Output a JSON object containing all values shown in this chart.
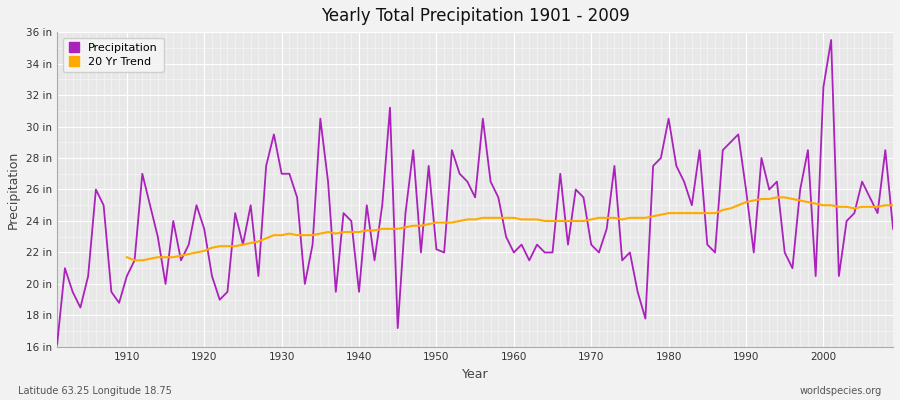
{
  "title": "Yearly Total Precipitation 1901 - 2009",
  "xlabel": "Year",
  "ylabel": "Precipitation",
  "x_label_bottom_left": "Latitude 63.25 Longitude 18.75",
  "x_label_bottom_right": "worldspecies.org",
  "fig_bg_color": "#f2f2f2",
  "plot_bg_color": "#e8e8e8",
  "grid_color": "#ffffff",
  "precip_color": "#aa22bb",
  "trend_color": "#ffaa00",
  "ylim": [
    16,
    36
  ],
  "xlim": [
    1901,
    2009
  ],
  "yticks": [
    16,
    18,
    20,
    22,
    24,
    26,
    28,
    30,
    32,
    34,
    36
  ],
  "ytick_labels": [
    "16 in",
    "18 in",
    "20 in",
    "22 in",
    "24 in",
    "26 in",
    "28 in",
    "30 in",
    "32 in",
    "34 in",
    "36 in"
  ],
  "xtick_vals": [
    1910,
    1920,
    1930,
    1940,
    1950,
    1960,
    1970,
    1980,
    1990,
    2000
  ],
  "years": [
    1901,
    1902,
    1903,
    1904,
    1905,
    1906,
    1907,
    1908,
    1909,
    1910,
    1911,
    1912,
    1913,
    1914,
    1915,
    1916,
    1917,
    1918,
    1919,
    1920,
    1921,
    1922,
    1923,
    1924,
    1925,
    1926,
    1927,
    1928,
    1929,
    1930,
    1931,
    1932,
    1933,
    1934,
    1935,
    1936,
    1937,
    1938,
    1939,
    1940,
    1941,
    1942,
    1943,
    1944,
    1945,
    1946,
    1947,
    1948,
    1949,
    1950,
    1951,
    1952,
    1953,
    1954,
    1955,
    1956,
    1957,
    1958,
    1959,
    1960,
    1961,
    1962,
    1963,
    1964,
    1965,
    1966,
    1967,
    1968,
    1969,
    1970,
    1971,
    1972,
    1973,
    1974,
    1975,
    1976,
    1977,
    1978,
    1979,
    1980,
    1981,
    1982,
    1983,
    1984,
    1985,
    1986,
    1987,
    1988,
    1989,
    1990,
    1991,
    1992,
    1993,
    1994,
    1995,
    1996,
    1997,
    1998,
    1999,
    2000,
    2001,
    2002,
    2003,
    2004,
    2005,
    2006,
    2007,
    2008,
    2009
  ],
  "precip": [
    16.2,
    21.0,
    19.5,
    18.5,
    20.5,
    26.0,
    25.0,
    19.5,
    18.8,
    20.5,
    21.5,
    27.0,
    25.0,
    23.0,
    20.0,
    24.0,
    21.5,
    22.5,
    25.0,
    23.5,
    20.5,
    19.0,
    19.5,
    24.5,
    22.5,
    25.0,
    20.5,
    27.5,
    29.5,
    27.0,
    27.0,
    25.5,
    20.0,
    22.5,
    30.5,
    26.5,
    19.5,
    24.5,
    24.0,
    19.5,
    25.0,
    21.5,
    25.0,
    31.2,
    17.2,
    24.5,
    28.5,
    22.0,
    27.5,
    22.2,
    22.0,
    28.5,
    27.0,
    26.5,
    25.5,
    30.5,
    26.5,
    25.5,
    23.0,
    22.0,
    22.5,
    21.5,
    22.5,
    22.0,
    22.0,
    27.0,
    22.5,
    26.0,
    25.5,
    22.5,
    22.0,
    23.5,
    27.5,
    21.5,
    22.0,
    19.5,
    17.8,
    27.5,
    28.0,
    30.5,
    27.5,
    26.5,
    25.0,
    28.5,
    22.5,
    22.0,
    28.5,
    29.0,
    29.5,
    26.0,
    22.0,
    28.0,
    26.0,
    26.5,
    22.0,
    21.0,
    26.0,
    28.5,
    20.5,
    32.5,
    35.5,
    20.5,
    24.0,
    24.5,
    26.5,
    25.5,
    24.5,
    28.5,
    23.5
  ],
  "trend": [
    null,
    null,
    null,
    null,
    null,
    null,
    null,
    null,
    null,
    21.7,
    21.5,
    21.5,
    21.6,
    21.7,
    21.7,
    21.7,
    21.8,
    21.9,
    22.0,
    22.1,
    22.3,
    22.4,
    22.4,
    22.4,
    22.5,
    22.6,
    22.7,
    22.9,
    23.1,
    23.1,
    23.2,
    23.1,
    23.1,
    23.1,
    23.2,
    23.3,
    23.2,
    23.3,
    23.3,
    23.3,
    23.4,
    23.4,
    23.5,
    23.5,
    23.5,
    23.6,
    23.7,
    23.7,
    23.8,
    23.9,
    23.9,
    23.9,
    24.0,
    24.1,
    24.1,
    24.2,
    24.2,
    24.2,
    24.2,
    24.2,
    24.1,
    24.1,
    24.1,
    24.0,
    24.0,
    24.0,
    24.0,
    24.0,
    24.0,
    24.1,
    24.2,
    24.2,
    24.2,
    24.1,
    24.2,
    24.2,
    24.2,
    24.3,
    24.4,
    24.5,
    24.5,
    24.5,
    24.5,
    24.5,
    24.5,
    24.5,
    24.7,
    24.8,
    25.0,
    25.2,
    25.3,
    25.4,
    25.4,
    25.5,
    25.5,
    25.4,
    25.3,
    25.2,
    25.1,
    25.0,
    25.0,
    24.9,
    24.9,
    24.8,
    24.9,
    24.9,
    24.9,
    25.0,
    25.0
  ]
}
